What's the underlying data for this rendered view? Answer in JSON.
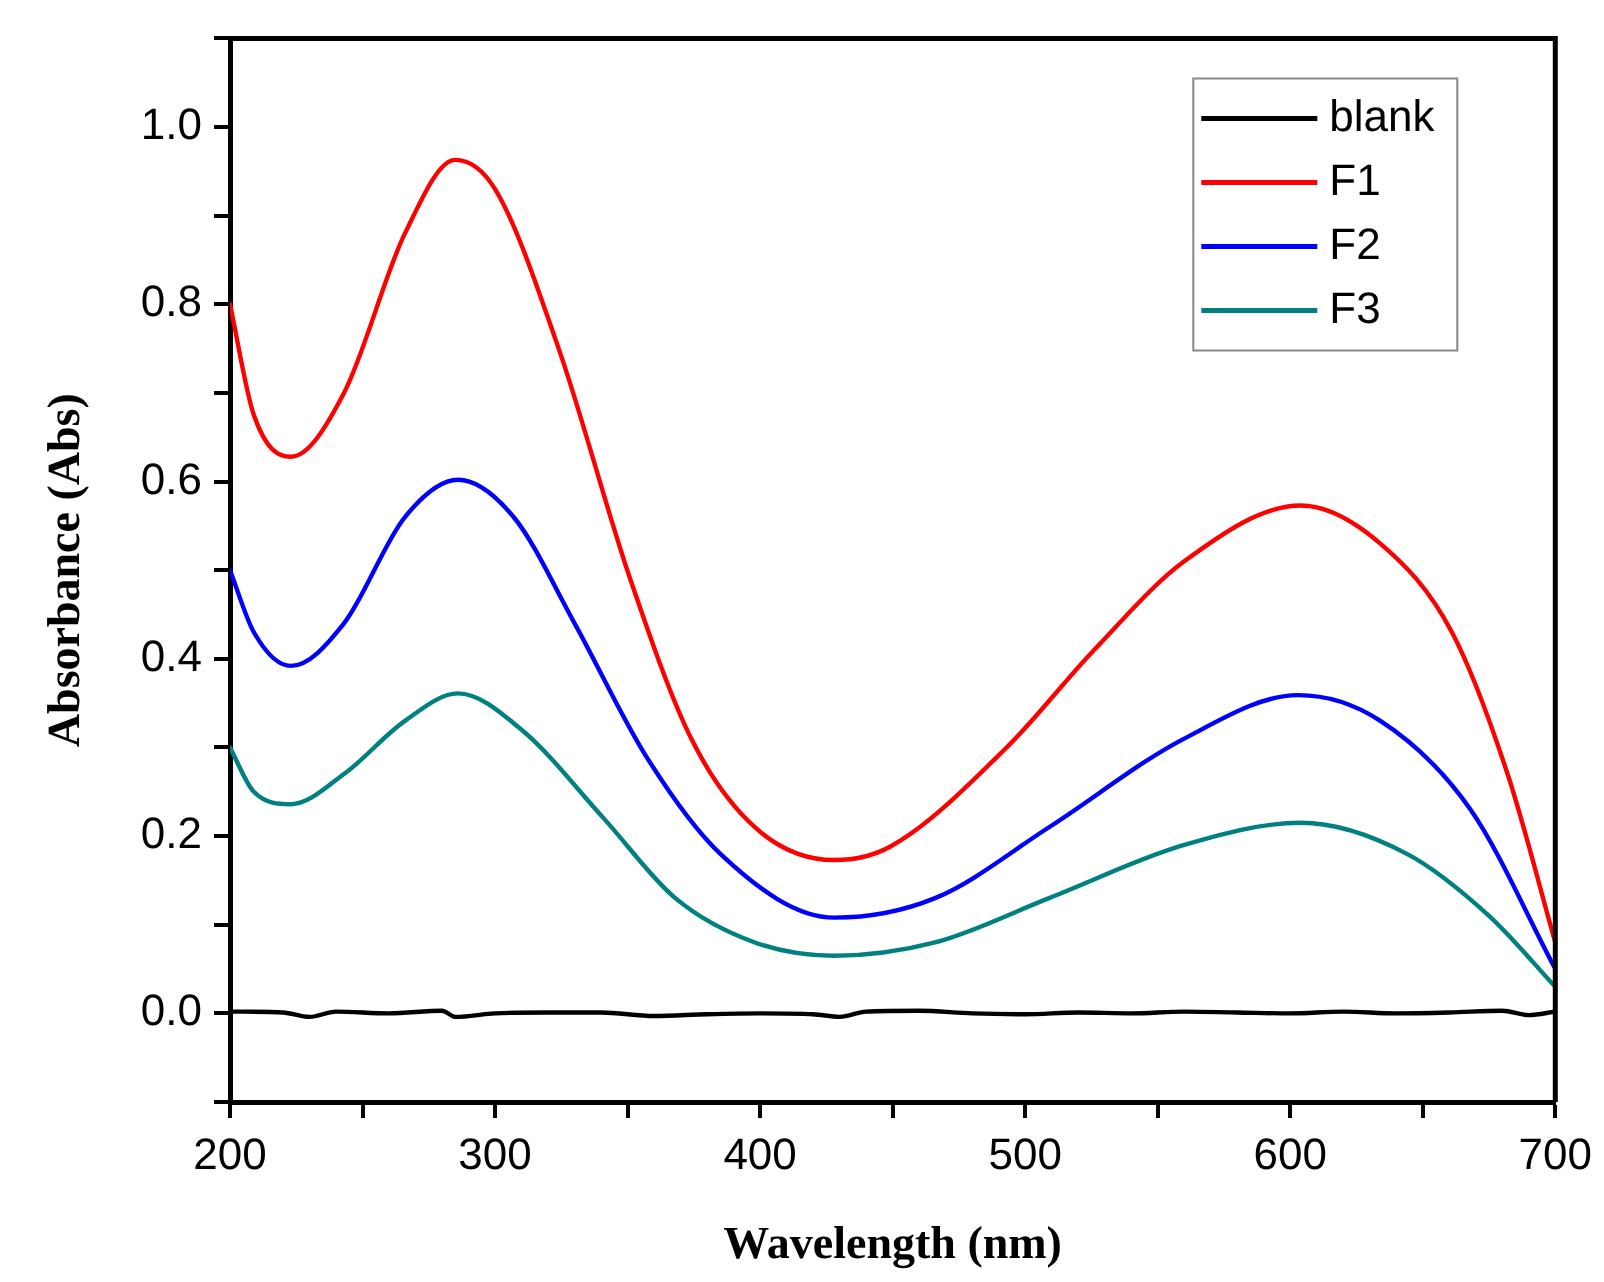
{
  "chart_data": {
    "type": "line",
    "xlabel": "Wavelength (nm)",
    "ylabel": "Absorbance (Abs)",
    "xlim": [
      200,
      700
    ],
    "xticks": [
      200,
      {
        "value": 250,
        "label": null
      },
      300,
      {
        "value": 350,
        "label": null
      },
      400,
      {
        "value": 450,
        "label": null
      },
      500,
      {
        "value": 550,
        "label": null
      },
      600,
      {
        "value": 650,
        "label": null
      },
      700
    ],
    "ylim": [
      -0.1,
      1.1
    ],
    "yticks": [
      {
        "value": -0.1,
        "label": null
      },
      "0.0",
      {
        "value": 0.1,
        "label": null
      },
      0.2,
      {
        "value": 0.3,
        "label": null
      },
      0.4,
      {
        "value": 0.5,
        "label": null
      },
      0.6,
      {
        "value": 0.7,
        "label": null
      },
      0.8,
      {
        "value": 0.9,
        "label": null
      },
      {
        "value": 1.0,
        "label": "1.0"
      },
      {
        "value": 1.1,
        "label": null
      }
    ],
    "grid": false,
    "legend": "top right",
    "marker": "none",
    "line_style": "solid",
    "series": [
      {
        "name": "blank",
        "color": "#000000",
        "x": [
          200,
          220,
          230,
          240,
          260,
          280,
          285,
          300,
          320,
          340,
          360,
          380,
          400,
          420,
          430,
          440,
          460,
          480,
          500,
          520,
          540,
          560,
          580,
          600,
          620,
          640,
          660,
          680,
          690,
          700
        ],
        "values": [
          0.002,
          0.001,
          -0.004,
          0.002,
          0.0,
          0.003,
          -0.004,
          0.0,
          0.001,
          0.001,
          -0.003,
          -0.001,
          0.0,
          -0.001,
          -0.004,
          0.002,
          0.003,
          0.0,
          -0.001,
          0.001,
          0.0,
          0.002,
          0.001,
          0.0,
          0.002,
          0.0,
          0.001,
          0.003,
          -0.002,
          0.002
        ]
      },
      {
        "name": "F1",
        "color": "#ff0000",
        "x": [
          200,
          209,
          223,
          243,
          266,
          285,
          300,
          324,
          351,
          374,
          398,
          428,
          449,
          493,
          526,
          560,
          604,
          634,
          661,
          682,
          700
        ],
        "values": [
          0.8,
          0.675,
          0.628,
          0.7,
          0.88,
          0.963,
          0.93,
          0.75,
          0.49,
          0.31,
          0.21,
          0.173,
          0.188,
          0.3,
          0.41,
          0.51,
          0.573,
          0.53,
          0.43,
          0.27,
          0.08
        ]
      },
      {
        "name": "F2",
        "color": "#0000ff",
        "x": [
          200,
          209,
          223,
          243,
          266,
          286,
          307,
          330,
          357,
          385,
          428,
          466,
          509,
          560,
          603,
          634,
          668,
          700
        ],
        "values": [
          0.5,
          0.43,
          0.392,
          0.44,
          0.56,
          0.602,
          0.56,
          0.44,
          0.29,
          0.18,
          0.108,
          0.13,
          0.21,
          0.31,
          0.359,
          0.33,
          0.23,
          0.05
        ]
      },
      {
        "name": "F3",
        "color": "#008080",
        "x": [
          200,
          209,
          223,
          243,
          266,
          286,
          310,
          341,
          368,
          398,
          428,
          466,
          509,
          560,
          604,
          644,
          675,
          700
        ],
        "values": [
          0.3,
          0.25,
          0.236,
          0.27,
          0.33,
          0.361,
          0.32,
          0.22,
          0.13,
          0.08,
          0.065,
          0.08,
          0.13,
          0.19,
          0.215,
          0.18,
          0.11,
          0.03
        ]
      }
    ]
  }
}
